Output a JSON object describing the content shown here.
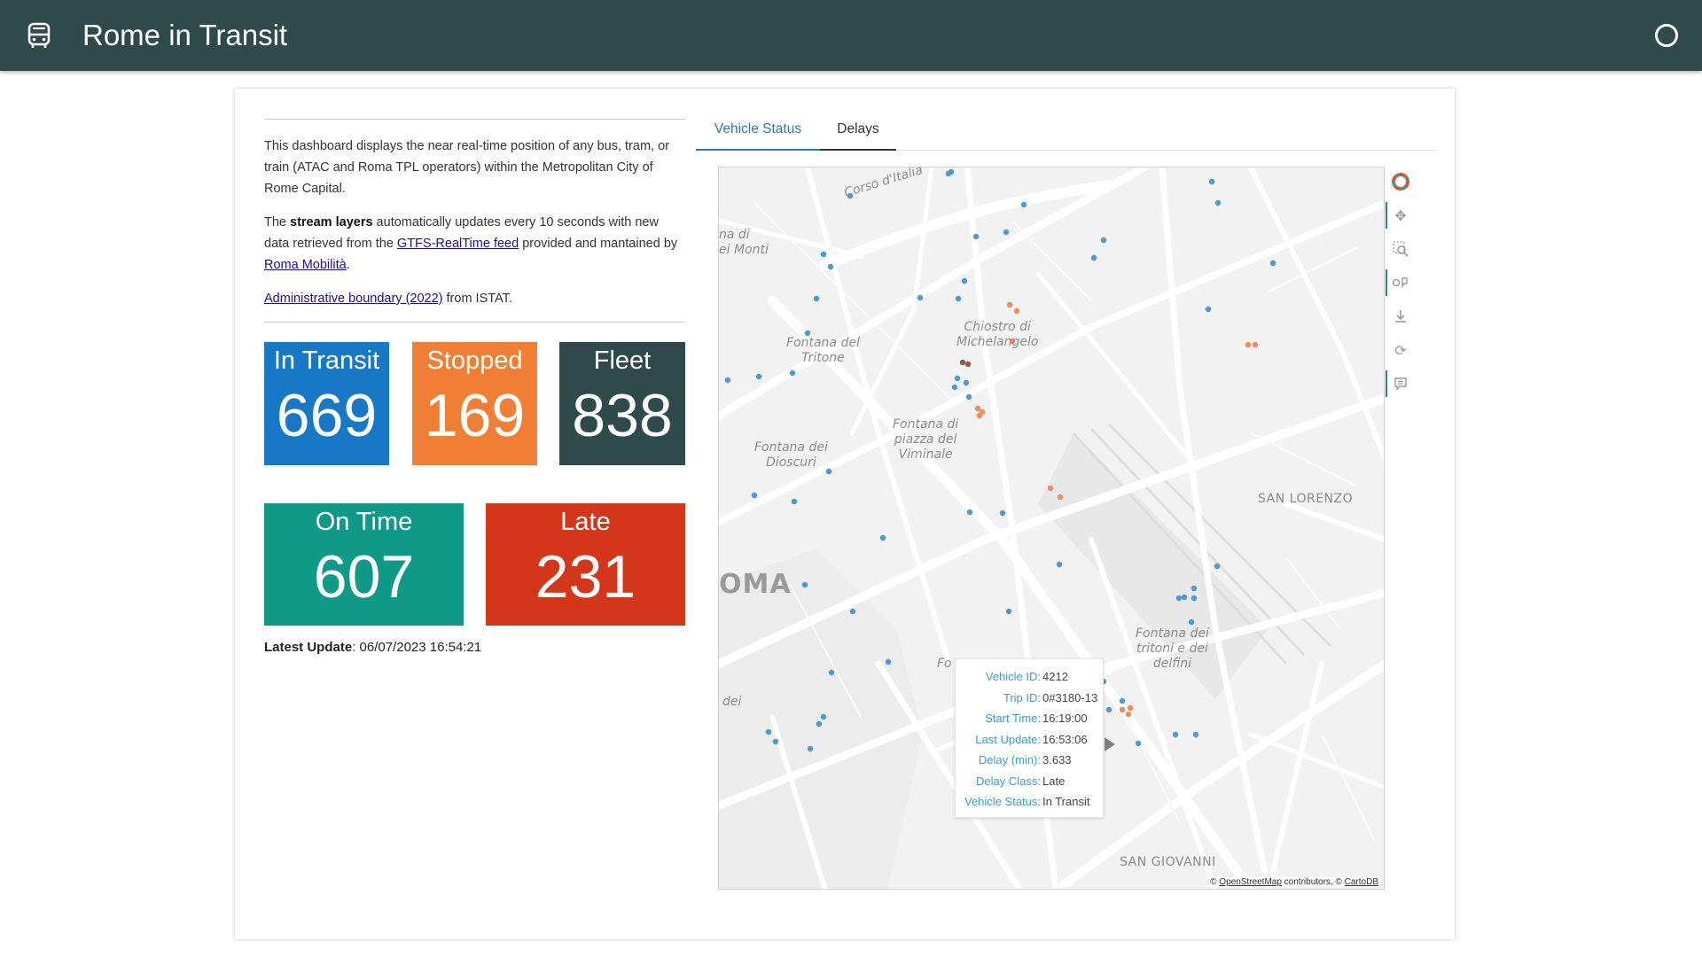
{
  "header": {
    "title": "Rome in Transit",
    "app_icon": "bus-icon",
    "right_icon": "circle-icon"
  },
  "intro": {
    "p1": "This dashboard displays the near real-time position of any bus, tram, or train (ATAC and Roma TPL operators) within the Metropolitan City of Rome Capital.",
    "p2_a": "The ",
    "p2_bold": "stream layers",
    "p2_b": " automatically updates every 10 seconds with new data retrieved from the ",
    "p2_link1": "GTFS-RealTime feed",
    "p2_c": " provided and mantained by ",
    "p2_link2": "Roma Mobilità",
    "p2_d": ".",
    "p3_link": "Administrative boundary (2022)",
    "p3_rest": " from ISTAT."
  },
  "tiles": {
    "in_transit": {
      "label": "In Transit",
      "value": "669",
      "color": "#1778c6"
    },
    "stopped": {
      "label": "Stopped",
      "value": "169",
      "color": "#f07f35"
    },
    "fleet": {
      "label": "Fleet",
      "value": "838",
      "color": "#2e4a4a"
    },
    "on_time": {
      "label": "On Time",
      "value": "607",
      "color": "#0f9a88"
    },
    "late": {
      "label": "Late",
      "value": "231",
      "color": "#d4361a"
    }
  },
  "latest_update": {
    "label": "Latest Update",
    "value": ": 06/07/2023 16:54:21"
  },
  "tabs": [
    "Vehicle Status",
    "Delays"
  ],
  "map": {
    "labels": {
      "corso": "Corso d'Italia",
      "monti": "na di\nei Monti",
      "tritone": "Fontana del\nTritone",
      "chiostro": "Chiostro di\nMichelangelo",
      "viminale": "Fontana di\npiazza del\nViminale",
      "dioscuri": "Fontana dei\nDioscuri",
      "san_lorenzo": "SAN LORENZO",
      "roma": "OMA",
      "delfini": "Fontana dei\ntritoni e dei\ndelfini",
      "fo": "Fo",
      "dei": "dei",
      "san_giovanni": "SAN GIOVANNI"
    },
    "attribution": {
      "prefix": "© ",
      "osm": "OpenStreetMap",
      "middle": " contributors, © ",
      "carto": "CartoDB"
    },
    "colors": {
      "transit": "#4a9ad4",
      "stopped": "#f08b5c",
      "late": "#8a5a4a"
    }
  },
  "tooltip": {
    "rows": [
      {
        "k": "Vehicle ID:",
        "v": "4212"
      },
      {
        "k": "Trip ID:",
        "v": "0#3180-13"
      },
      {
        "k": "Start Time:",
        "v": "16:19:00"
      },
      {
        "k": "Last Update:",
        "v": "16:53:06"
      },
      {
        "k": "Delay (min):",
        "v": "3.633"
      },
      {
        "k": "Delay Class:",
        "v": "Late"
      },
      {
        "k": "Vehicle Status:",
        "v": "In Transit"
      }
    ]
  },
  "toolbar": [
    "logo-icon",
    "pan-icon",
    "zoom-box-icon",
    "hover-icon",
    "download-icon",
    "reset-icon",
    "comment-icon"
  ]
}
